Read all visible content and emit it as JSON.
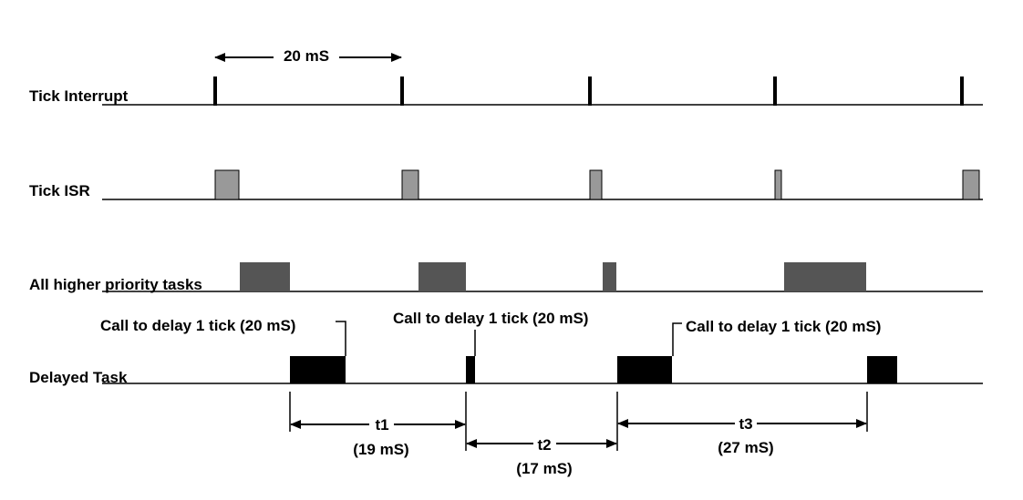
{
  "rows": {
    "tick_interrupt": "Tick Interrupt",
    "tick_isr": "Tick ISR",
    "higher_priority": "All higher priority tasks",
    "delayed_task": "Delayed Task"
  },
  "tick_period_label": "20 mS",
  "delay_calls": [
    "Call to delay 1 tick (20 mS)",
    "Call to delay 1 tick (20 mS)",
    "Call to delay 1 tick (20 mS)"
  ],
  "intervals": [
    {
      "name": "t1",
      "value": "(19 mS)"
    },
    {
      "name": "t2",
      "value": "(17 mS)"
    },
    {
      "name": "t3",
      "value": "(27 mS)"
    }
  ],
  "colors": {
    "isr": "#999999",
    "higher": "#555555",
    "delayed": "#000000"
  }
}
